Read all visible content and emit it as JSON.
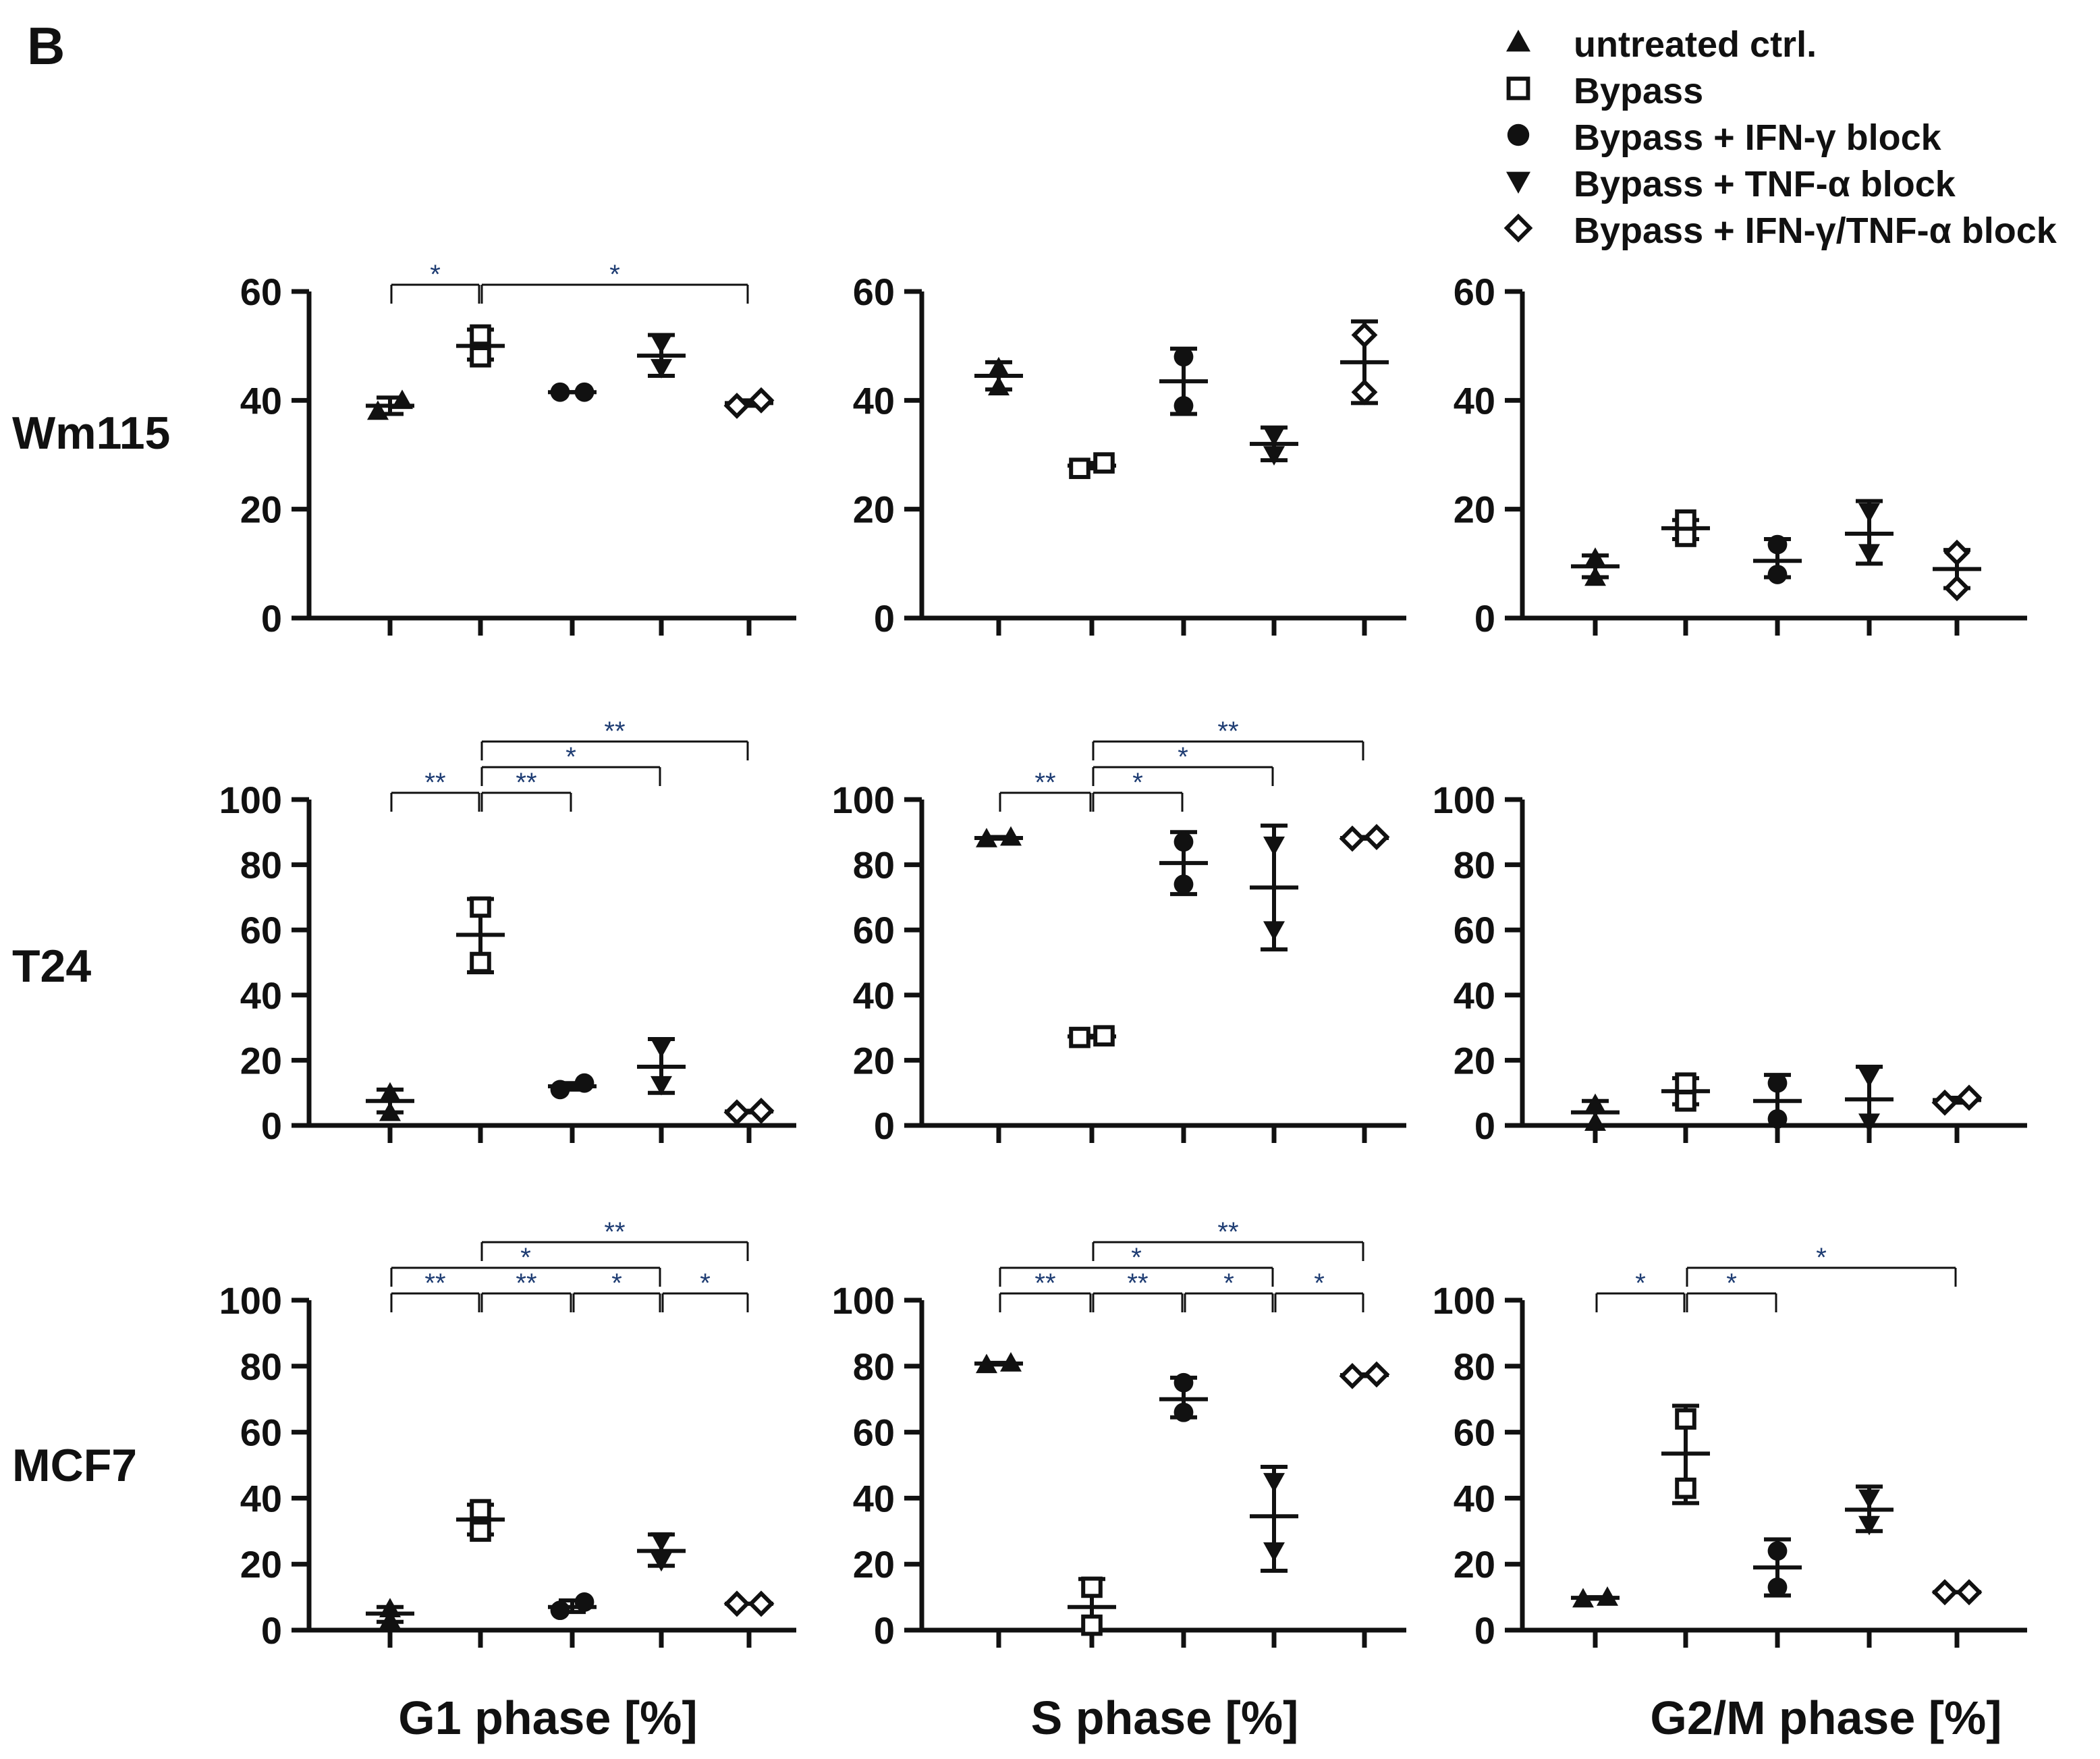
{
  "panel_label": "B",
  "legend": [
    {
      "symbol": "triangle-up",
      "label": "untreated ctrl."
    },
    {
      "symbol": "square-open",
      "label": "Bypass"
    },
    {
      "symbol": "circle",
      "label": "Bypass + IFN-γ block"
    },
    {
      "symbol": "triangle-down",
      "label": "Bypass + TNF-α block"
    },
    {
      "symbol": "diamond-open",
      "label": "Bypass + IFN-γ/TNF-α block"
    }
  ],
  "row_labels": [
    "Wm115",
    "T24",
    "MCF7"
  ],
  "column_labels": [
    "G1 phase [%]",
    "S phase [%]",
    "G2/M phase [%]"
  ],
  "colors": {
    "ink": "#111111",
    "sig_text": "#1f3d73"
  },
  "chart_data": [
    {
      "type": "scatter",
      "row": "Wm115",
      "xlabel": "G1 phase [%]",
      "ylim": [
        0,
        60
      ],
      "yticks": [
        0,
        20,
        40,
        60
      ],
      "groups": [
        {
          "name": "untreated ctrl.",
          "symbol": "triangle-up",
          "points": [
            38,
            40
          ],
          "mean": 39,
          "err": [
            37.5,
            40.5
          ]
        },
        {
          "name": "Bypass",
          "symbol": "square-open",
          "points": [
            48,
            52
          ],
          "mean": 50,
          "err": [
            47.5,
            53
          ]
        },
        {
          "name": "Bypass + IFN-γ block",
          "symbol": "circle",
          "points": [
            41.5,
            41.5
          ],
          "mean": 41.5,
          "err": [
            41.5,
            41.5
          ]
        },
        {
          "name": "Bypass + TNF-α block",
          "symbol": "triangle-down",
          "points": [
            46,
            50.5
          ],
          "mean": 48.2,
          "err": [
            44.5,
            52
          ]
        },
        {
          "name": "Bypass + IFN-γ/TNF-α block",
          "symbol": "diamond-open",
          "points": [
            39,
            40
          ],
          "mean": 39.5,
          "err": [
            39,
            40
          ]
        }
      ],
      "brackets": [
        {
          "from": 0,
          "to": 1,
          "label": "*",
          "level": 0
        },
        {
          "from": 1,
          "to": 4,
          "label": "*",
          "level": 0
        }
      ]
    },
    {
      "type": "scatter",
      "row": "Wm115",
      "xlabel": "S phase [%]",
      "ylim": [
        0,
        60
      ],
      "yticks": [
        0,
        20,
        40,
        60
      ],
      "groups": [
        {
          "name": "untreated ctrl.",
          "symbol": "triangle-up",
          "points": [
            42.5,
            46
          ],
          "mean": 44.5,
          "err": [
            42,
            47
          ]
        },
        {
          "name": "Bypass",
          "symbol": "square-open",
          "points": [
            27.5,
            28.5
          ],
          "mean": 28,
          "err": [
            27.5,
            28.5
          ]
        },
        {
          "name": "Bypass + IFN-γ block",
          "symbol": "circle",
          "points": [
            39,
            48
          ],
          "mean": 43.5,
          "err": [
            37.5,
            49.5
          ]
        },
        {
          "name": "Bypass + TNF-α block",
          "symbol": "triangle-down",
          "points": [
            30,
            33.5
          ],
          "mean": 32,
          "err": [
            29,
            35
          ]
        },
        {
          "name": "Bypass + IFN-γ/TNF-α block",
          "symbol": "diamond-open",
          "points": [
            41.5,
            52
          ],
          "mean": 47,
          "err": [
            39.5,
            54.5
          ]
        }
      ],
      "brackets": []
    },
    {
      "type": "scatter",
      "row": "Wm115",
      "xlabel": "G2/M phase [%]",
      "ylim": [
        0,
        60
      ],
      "yticks": [
        0,
        20,
        40,
        60
      ],
      "groups": [
        {
          "name": "untreated ctrl.",
          "symbol": "triangle-up",
          "points": [
            7.5,
            11
          ],
          "mean": 9.5,
          "err": [
            7.5,
            11.5
          ]
        },
        {
          "name": "Bypass",
          "symbol": "square-open",
          "points": [
            15,
            18
          ],
          "mean": 16.5,
          "err": [
            14.5,
            18
          ]
        },
        {
          "name": "Bypass + IFN-γ block",
          "symbol": "circle",
          "points": [
            8,
            13.5
          ],
          "mean": 10.5,
          "err": [
            7.5,
            14.5
          ]
        },
        {
          "name": "Bypass + TNF-α block",
          "symbol": "triangle-down",
          "points": [
            12,
            19.5
          ],
          "mean": 15.5,
          "err": [
            10,
            21.5
          ]
        },
        {
          "name": "Bypass + IFN-γ/TNF-α block",
          "symbol": "diamond-open",
          "points": [
            5.5,
            12
          ],
          "mean": 9,
          "err": [
            5.5,
            12.5
          ]
        }
      ],
      "brackets": []
    },
    {
      "type": "scatter",
      "row": "T24",
      "xlabel": "G1 phase [%]",
      "ylim": [
        0,
        100
      ],
      "yticks": [
        0,
        20,
        40,
        60,
        80,
        100
      ],
      "groups": [
        {
          "name": "untreated ctrl.",
          "symbol": "triangle-up",
          "points": [
            4,
            10
          ],
          "mean": 7.5,
          "err": [
            4,
            11
          ]
        },
        {
          "name": "Bypass",
          "symbol": "square-open",
          "points": [
            50,
            67
          ],
          "mean": 58.5,
          "err": [
            47,
            69.5
          ]
        },
        {
          "name": "Bypass + IFN-γ block",
          "symbol": "circle",
          "points": [
            11,
            13
          ],
          "mean": 12,
          "err": [
            11,
            13
          ]
        },
        {
          "name": "Bypass + TNF-α block",
          "symbol": "triangle-down",
          "points": [
            12.5,
            24
          ],
          "mean": 18,
          "err": [
            10,
            26.5
          ]
        },
        {
          "name": "Bypass + IFN-γ/TNF-α block",
          "symbol": "diamond-open",
          "points": [
            4,
            4.5
          ],
          "mean": 4.3,
          "err": [
            4,
            4.5
          ]
        }
      ],
      "brackets": [
        {
          "from": 0,
          "to": 1,
          "label": "**",
          "level": 0
        },
        {
          "from": 1,
          "to": 2,
          "label": "**",
          "level": 0
        },
        {
          "from": 1,
          "to": 3,
          "label": "*",
          "level": 1
        },
        {
          "from": 1,
          "to": 4,
          "label": "**",
          "level": 2
        }
      ]
    },
    {
      "type": "scatter",
      "row": "T24",
      "xlabel": "S phase [%]",
      "ylim": [
        0,
        100
      ],
      "yticks": [
        0,
        20,
        40,
        60,
        80,
        100
      ],
      "groups": [
        {
          "name": "untreated ctrl.",
          "symbol": "triangle-up",
          "points": [
            88,
            88.5
          ],
          "mean": 88.2,
          "err": [
            88,
            88.5
          ]
        },
        {
          "name": "Bypass",
          "symbol": "square-open",
          "points": [
            27,
            27.5
          ],
          "mean": 27.3,
          "err": [
            27,
            27.5
          ]
        },
        {
          "name": "Bypass + IFN-γ block",
          "symbol": "circle",
          "points": [
            74,
            87
          ],
          "mean": 80.5,
          "err": [
            71,
            90
          ]
        },
        {
          "name": "Bypass + TNF-α block",
          "symbol": "triangle-down",
          "points": [
            60,
            86
          ],
          "mean": 73,
          "err": [
            54,
            92
          ]
        },
        {
          "name": "Bypass + IFN-γ/TNF-α block",
          "symbol": "diamond-open",
          "points": [
            88,
            88.5
          ],
          "mean": 88.2,
          "err": [
            88,
            88.5
          ]
        }
      ],
      "brackets": [
        {
          "from": 0,
          "to": 1,
          "label": "**",
          "level": 0
        },
        {
          "from": 1,
          "to": 2,
          "label": "*",
          "level": 0
        },
        {
          "from": 1,
          "to": 3,
          "label": "*",
          "level": 1
        },
        {
          "from": 1,
          "to": 4,
          "label": "**",
          "level": 2
        }
      ]
    },
    {
      "type": "scatter",
      "row": "T24",
      "xlabel": "G2/M phase [%]",
      "ylim": [
        0,
        100
      ],
      "yticks": [
        0,
        20,
        40,
        60,
        80,
        100
      ],
      "groups": [
        {
          "name": "untreated ctrl.",
          "symbol": "triangle-up",
          "points": [
            1,
            6.5
          ],
          "mean": 4,
          "err": [
            0,
            7.5
          ]
        },
        {
          "name": "Bypass",
          "symbol": "square-open",
          "points": [
            7.5,
            13
          ],
          "mean": 10.5,
          "err": [
            6.5,
            14.5
          ]
        },
        {
          "name": "Bypass + IFN-γ block",
          "symbol": "circle",
          "points": [
            2,
            13
          ],
          "mean": 7.5,
          "err": [
            0,
            15.5
          ]
        },
        {
          "name": "Bypass + TNF-α block",
          "symbol": "triangle-down",
          "points": [
            1,
            15
          ],
          "mean": 8,
          "err": [
            0,
            18
          ]
        },
        {
          "name": "Bypass + IFN-γ/TNF-α block",
          "symbol": "diamond-open",
          "points": [
            7,
            8.5
          ],
          "mean": 7.8,
          "err": [
            7,
            8.5
          ]
        }
      ],
      "brackets": []
    },
    {
      "type": "scatter",
      "row": "MCF7",
      "xlabel": "G1 phase [%]",
      "ylim": [
        0,
        100
      ],
      "yticks": [
        0,
        20,
        40,
        60,
        80,
        100
      ],
      "groups": [
        {
          "name": "untreated ctrl.",
          "symbol": "triangle-up",
          "points": [
            3,
            6.5
          ],
          "mean": 5,
          "err": [
            2.5,
            7
          ]
        },
        {
          "name": "Bypass",
          "symbol": "square-open",
          "points": [
            30,
            36.5
          ],
          "mean": 33.5,
          "err": [
            29,
            38
          ]
        },
        {
          "name": "Bypass + IFN-γ block",
          "symbol": "circle",
          "points": [
            6,
            8.5
          ],
          "mean": 7,
          "err": [
            5.5,
            9
          ]
        },
        {
          "name": "Bypass + TNF-α block",
          "symbol": "triangle-down",
          "points": [
            21,
            27
          ],
          "mean": 24,
          "err": [
            19.5,
            29
          ]
        },
        {
          "name": "Bypass + IFN-γ/TNF-α block",
          "symbol": "diamond-open",
          "points": [
            8,
            8
          ],
          "mean": 8,
          "err": [
            8,
            8
          ]
        }
      ],
      "brackets": [
        {
          "from": 0,
          "to": 1,
          "label": "**",
          "level": 0
        },
        {
          "from": 1,
          "to": 2,
          "label": "**",
          "level": 0
        },
        {
          "from": 2,
          "to": 3,
          "label": "*",
          "level": 0
        },
        {
          "from": 3,
          "to": 4,
          "label": "*",
          "level": 0
        },
        {
          "from": 0,
          "to": 3,
          "label": "*",
          "level": 1
        },
        {
          "from": 1,
          "to": 4,
          "label": "**",
          "level": 2
        }
      ]
    },
    {
      "type": "scatter",
      "row": "MCF7",
      "xlabel": "S phase [%]",
      "ylim": [
        0,
        100
      ],
      "yticks": [
        0,
        20,
        40,
        60,
        80,
        100
      ],
      "groups": [
        {
          "name": "untreated ctrl.",
          "symbol": "triangle-up",
          "points": [
            80.5,
            81
          ],
          "mean": 80.8,
          "err": [
            80.5,
            81
          ]
        },
        {
          "name": "Bypass",
          "symbol": "square-open",
          "points": [
            1.5,
            13
          ],
          "mean": 7,
          "err": [
            0,
            15.5
          ]
        },
        {
          "name": "Bypass + IFN-γ block",
          "symbol": "circle",
          "points": [
            66,
            75
          ],
          "mean": 70,
          "err": [
            64.5,
            76.5
          ]
        },
        {
          "name": "Bypass + TNF-α block",
          "symbol": "triangle-down",
          "points": [
            24,
            45
          ],
          "mean": 34.5,
          "err": [
            18,
            49.5
          ]
        },
        {
          "name": "Bypass + IFN-γ/TNF-α block",
          "symbol": "diamond-open",
          "points": [
            77,
            77.5
          ],
          "mean": 77.3,
          "err": [
            77,
            77.5
          ]
        }
      ],
      "brackets": [
        {
          "from": 0,
          "to": 1,
          "label": "**",
          "level": 0
        },
        {
          "from": 1,
          "to": 2,
          "label": "**",
          "level": 0
        },
        {
          "from": 2,
          "to": 3,
          "label": "*",
          "level": 0
        },
        {
          "from": 3,
          "to": 4,
          "label": "*",
          "level": 0
        },
        {
          "from": 0,
          "to": 3,
          "label": "*",
          "level": 1
        },
        {
          "from": 1,
          "to": 4,
          "label": "**",
          "level": 2
        }
      ]
    },
    {
      "type": "scatter",
      "row": "MCF7",
      "xlabel": "G2/M phase [%]",
      "ylim": [
        0,
        100
      ],
      "yticks": [
        0,
        20,
        40,
        60,
        80,
        100
      ],
      "groups": [
        {
          "name": "untreated ctrl.",
          "symbol": "triangle-up",
          "points": [
            9.5,
            10
          ],
          "mean": 9.8,
          "err": [
            9.5,
            10
          ]
        },
        {
          "name": "Bypass",
          "symbol": "square-open",
          "points": [
            43,
            64
          ],
          "mean": 53.5,
          "err": [
            38.5,
            68
          ]
        },
        {
          "name": "Bypass + IFN-γ block",
          "symbol": "circle",
          "points": [
            13,
            24
          ],
          "mean": 19,
          "err": [
            10.5,
            27.5
          ]
        },
        {
          "name": "Bypass + TNF-α block",
          "symbol": "triangle-down",
          "points": [
            32,
            40
          ],
          "mean": 36.5,
          "err": [
            30,
            43.5
          ]
        },
        {
          "name": "Bypass + IFN-γ/TNF-α block",
          "symbol": "diamond-open",
          "points": [
            11.5,
            11.5
          ],
          "mean": 11.5,
          "err": [
            11.5,
            11.5
          ]
        }
      ],
      "brackets": [
        {
          "from": 0,
          "to": 1,
          "label": "*",
          "level": 0
        },
        {
          "from": 1,
          "to": 2,
          "label": "*",
          "level": 0
        },
        {
          "from": 1,
          "to": 4,
          "label": "*",
          "level": 1
        }
      ]
    }
  ]
}
